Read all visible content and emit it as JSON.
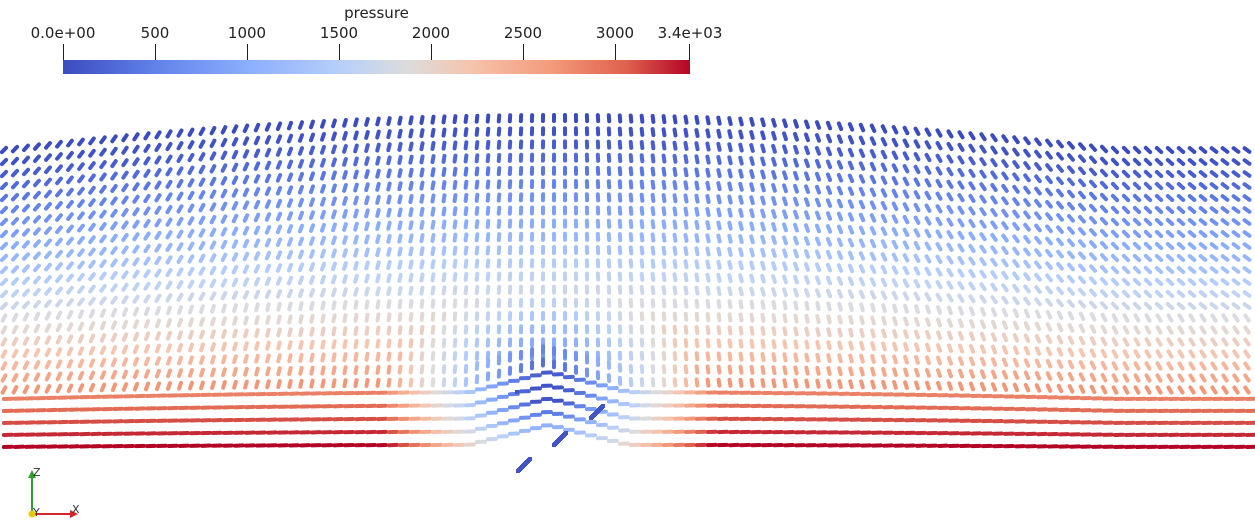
{
  "colorbar": {
    "title": "pressure",
    "ticks": [
      "0.0e+00",
      "500",
      "1000",
      "1500",
      "2000",
      "2500",
      "3000",
      "3.4e+03"
    ],
    "range": [
      0,
      3400
    ],
    "colormap": [
      "#3b4cc0",
      "#6282ea",
      "#8db0fe",
      "#b9d0f9",
      "#dddcdc",
      "#f5c4ad",
      "#f49a7b",
      "#de604d",
      "#b40426"
    ]
  },
  "axes": {
    "z_label": "Z",
    "y_label": "Y",
    "x_label": "X",
    "z_color": "#2ea02e",
    "x_color": "#d62728",
    "y_color": "#e8c800"
  }
}
